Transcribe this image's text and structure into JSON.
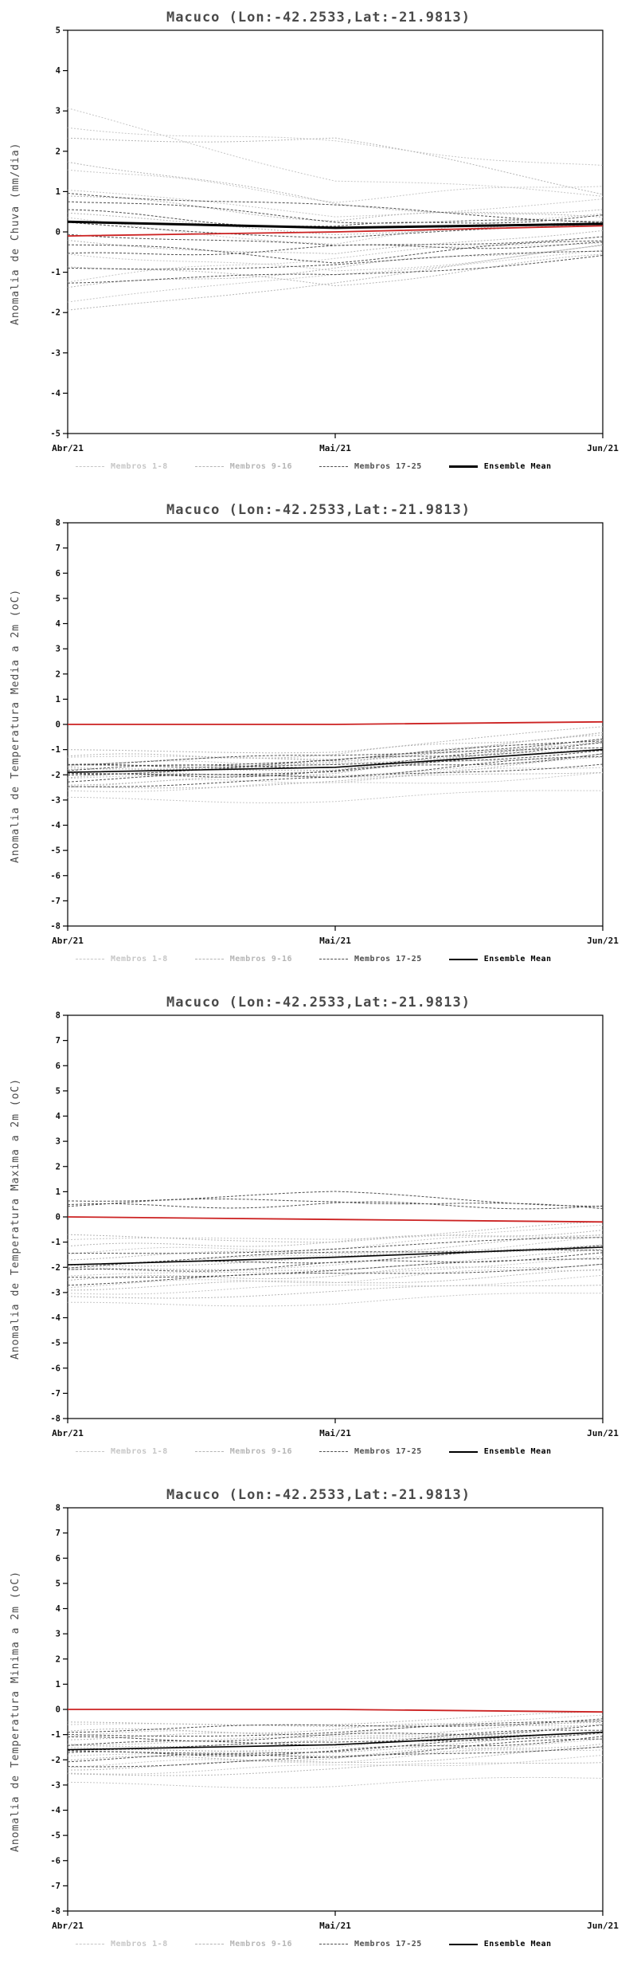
{
  "colors": {
    "members_1_8": "#c6c6c6",
    "members_9_16": "#b5b5b5",
    "members_17_25": "#4f4f4f",
    "ensemble_mean": "#000000",
    "red_line": "#cc2222",
    "axis": "#000000",
    "title_text": "#4a4a4a"
  },
  "legend": [
    {
      "label": "Membros 1-8",
      "series": "members_1_8",
      "dashed": true
    },
    {
      "label": "Membros 9-16",
      "series": "members_9_16",
      "dashed": true
    },
    {
      "label": "Membros 17-25",
      "series": "members_17_25",
      "dashed": true
    },
    {
      "label": "Ensemble Mean",
      "series": "ensemble_mean",
      "dashed": false
    }
  ],
  "chart_data": [
    {
      "type": "line",
      "title": "Macuco (Lon:-42.2533,Lat:-21.9813)",
      "ylabel": "Anomalia de Chuva (mm/dia)",
      "x_ticklabels": [
        "Abr/21",
        "Mai/21",
        "Jun/21"
      ],
      "ylim": [
        -5,
        5
      ],
      "ytick_step": 1,
      "grid": false,
      "legend_position": "bottom",
      "series": {
        "members_1_8": [
          [
            3.0,
            1.3,
            0.9
          ],
          [
            2.6,
            2.2,
            1.6
          ],
          [
            1.6,
            0.8,
            1.2
          ],
          [
            1.0,
            0.4,
            0.8
          ],
          [
            0.3,
            -0.3,
            0.5
          ],
          [
            -0.5,
            -1.0,
            -0.4
          ],
          [
            -1.2,
            -0.6,
            -0.2
          ],
          [
            -1.8,
            -1.0,
            -0.5
          ]
        ],
        "members_9_16": [
          [
            2.3,
            2.3,
            1.0
          ],
          [
            1.8,
            0.7,
            0.3
          ],
          [
            0.9,
            0.3,
            0.6
          ],
          [
            0.4,
            0.0,
            0.2
          ],
          [
            -0.2,
            -0.6,
            0.1
          ],
          [
            -0.8,
            -1.3,
            -0.6
          ],
          [
            -1.4,
            -0.9,
            -0.3
          ],
          [
            -2.0,
            -1.2,
            -0.4
          ]
        ],
        "members_17_25": [
          [
            1.0,
            0.6,
            0.3
          ],
          [
            0.8,
            0.3,
            0.2
          ],
          [
            0.5,
            0.1,
            0.4
          ],
          [
            0.2,
            -0.1,
            0.1
          ],
          [
            0.0,
            -0.4,
            -0.1
          ],
          [
            -0.3,
            -0.7,
            -0.2
          ],
          [
            -0.6,
            -0.4,
            -0.3
          ],
          [
            -0.9,
            -0.8,
            -0.5
          ],
          [
            -1.2,
            -1.1,
            -0.6
          ]
        ],
        "ensemble_mean": [
          0.25,
          0.1,
          0.2
        ],
        "red_line": [
          -0.1,
          0.0,
          0.15
        ]
      }
    },
    {
      "type": "line",
      "title": "Macuco (Lon:-42.2533,Lat:-21.9813)",
      "ylabel": "Anomalia de Temperatura Media a 2m (oC)",
      "x_ticklabels": [
        "Abr/21",
        "Mai/21",
        "Jun/21"
      ],
      "ylim": [
        -8,
        8
      ],
      "ytick_step": 1,
      "grid": false,
      "legend_position": "bottom",
      "series": {
        "members_1_8": [
          [
            -3.0,
            -3.0,
            -2.6
          ],
          [
            -2.6,
            -2.4,
            -2.0
          ],
          [
            -2.4,
            -2.2,
            -1.6
          ],
          [
            -2.2,
            -2.0,
            -1.2
          ],
          [
            -2.0,
            -1.8,
            -0.9
          ],
          [
            -1.8,
            -1.6,
            -0.7
          ],
          [
            -1.6,
            -1.5,
            -0.5
          ],
          [
            -1.4,
            -1.3,
            -0.4
          ]
        ],
        "members_9_16": [
          [
            -2.5,
            -2.3,
            -1.8
          ],
          [
            -2.3,
            -2.1,
            -1.4
          ],
          [
            -2.1,
            -1.9,
            -1.1
          ],
          [
            -1.9,
            -1.7,
            -0.8
          ],
          [
            -1.7,
            -1.6,
            -0.6
          ],
          [
            -1.5,
            -1.4,
            -0.5
          ],
          [
            -1.3,
            -1.2,
            -0.3
          ],
          [
            -1.1,
            -1.0,
            -0.2
          ]
        ],
        "members_17_25": [
          [
            -2.4,
            -2.2,
            -1.5
          ],
          [
            -2.2,
            -2.0,
            -1.3
          ],
          [
            -2.1,
            -1.9,
            -1.2
          ],
          [
            -2.0,
            -1.8,
            -1.1
          ],
          [
            -1.9,
            -1.7,
            -1.0
          ],
          [
            -1.8,
            -1.6,
            -0.9
          ],
          [
            -1.7,
            -1.5,
            -0.8
          ],
          [
            -1.6,
            -1.4,
            -0.7
          ],
          [
            -1.5,
            -1.3,
            -0.6
          ]
        ],
        "ensemble_mean": [
          -1.9,
          -1.7,
          -1.0
        ],
        "red_line": [
          0.0,
          0.0,
          0.1
        ]
      }
    },
    {
      "type": "line",
      "title": "Macuco (Lon:-42.2533,Lat:-21.9813)",
      "ylabel": "Anomalia de Temperatura Maxima a 2m (oC)",
      "x_ticklabels": [
        "Abr/21",
        "Mai/21",
        "Jun/21"
      ],
      "ylim": [
        -8,
        8
      ],
      "ytick_step": 1,
      "grid": false,
      "legend_position": "bottom",
      "series": {
        "members_1_8": [
          [
            -3.5,
            -3.4,
            -3.0
          ],
          [
            -3.0,
            -2.8,
            -2.4
          ],
          [
            -2.7,
            -2.5,
            -2.0
          ],
          [
            -2.4,
            -2.2,
            -1.6
          ],
          [
            -2.1,
            -1.9,
            -1.2
          ],
          [
            -1.8,
            -1.6,
            -0.9
          ],
          [
            -1.4,
            -1.2,
            -0.6
          ],
          [
            -1.0,
            -0.8,
            -0.4
          ]
        ],
        "members_9_16": [
          [
            -3.2,
            -3.0,
            -2.6
          ],
          [
            -2.8,
            -2.6,
            -2.2
          ],
          [
            -2.5,
            -2.3,
            -1.8
          ],
          [
            -2.2,
            -2.0,
            -1.4
          ],
          [
            -1.9,
            -1.7,
            -1.0
          ],
          [
            -1.6,
            -1.4,
            -0.8
          ],
          [
            -1.2,
            -1.0,
            -0.5
          ],
          [
            -0.8,
            -0.9,
            -0.3
          ]
        ],
        "members_17_25": [
          [
            0.7,
            0.9,
            0.5
          ],
          [
            0.5,
            0.7,
            0.3
          ],
          [
            0.4,
            0.5,
            0.4
          ],
          [
            -1.5,
            -1.2,
            -0.9
          ],
          [
            -1.8,
            -1.5,
            -1.1
          ],
          [
            -2.0,
            -1.7,
            -1.3
          ],
          [
            -2.2,
            -1.9,
            -1.5
          ],
          [
            -2.4,
            -2.1,
            -1.7
          ],
          [
            -2.6,
            -2.3,
            -1.9
          ]
        ],
        "ensemble_mean": [
          -1.9,
          -1.6,
          -1.2
        ],
        "red_line": [
          0.0,
          -0.1,
          -0.2
        ]
      }
    },
    {
      "type": "line",
      "title": "Macuco (Lon:-42.2533,Lat:-21.9813)",
      "ylabel": "Anomalia de Temperatura Minima a 2m (oC)",
      "x_ticklabels": [
        "Abr/21",
        "Mai/21",
        "Jun/21"
      ],
      "ylim": [
        -8,
        8
      ],
      "ytick_step": 1,
      "grid": false,
      "legend_position": "bottom",
      "series": {
        "members_1_8": [
          [
            -3.0,
            -3.0,
            -2.7
          ],
          [
            -2.5,
            -2.3,
            -1.9
          ],
          [
            -2.2,
            -2.0,
            -1.5
          ],
          [
            -1.9,
            -1.8,
            -1.2
          ],
          [
            -1.6,
            -1.5,
            -0.9
          ],
          [
            -1.3,
            -1.2,
            -0.7
          ],
          [
            -1.0,
            -0.9,
            -0.5
          ],
          [
            -0.7,
            -0.6,
            -0.3
          ]
        ],
        "members_9_16": [
          [
            -2.6,
            -2.4,
            -2.0
          ],
          [
            -2.3,
            -2.1,
            -1.6
          ],
          [
            -2.0,
            -1.9,
            -1.3
          ],
          [
            -1.7,
            -1.6,
            -1.0
          ],
          [
            -1.4,
            -1.3,
            -0.8
          ],
          [
            -1.1,
            -1.0,
            -0.6
          ],
          [
            -0.9,
            -0.8,
            -0.4
          ],
          [
            -0.6,
            -0.5,
            -0.2
          ]
        ],
        "members_17_25": [
          [
            -2.2,
            -2.0,
            -1.4
          ],
          [
            -2.0,
            -1.8,
            -1.2
          ],
          [
            -1.8,
            -1.7,
            -1.1
          ],
          [
            -1.7,
            -1.6,
            -1.0
          ],
          [
            -1.5,
            -1.4,
            -0.9
          ],
          [
            -1.4,
            -1.3,
            -0.8
          ],
          [
            -1.2,
            -1.1,
            -0.7
          ],
          [
            -1.0,
            -0.9,
            -0.5
          ],
          [
            -0.8,
            -0.7,
            -0.4
          ]
        ],
        "ensemble_mean": [
          -1.6,
          -1.4,
          -0.9
        ],
        "red_line": [
          0.0,
          0.0,
          -0.1
        ]
      }
    }
  ]
}
